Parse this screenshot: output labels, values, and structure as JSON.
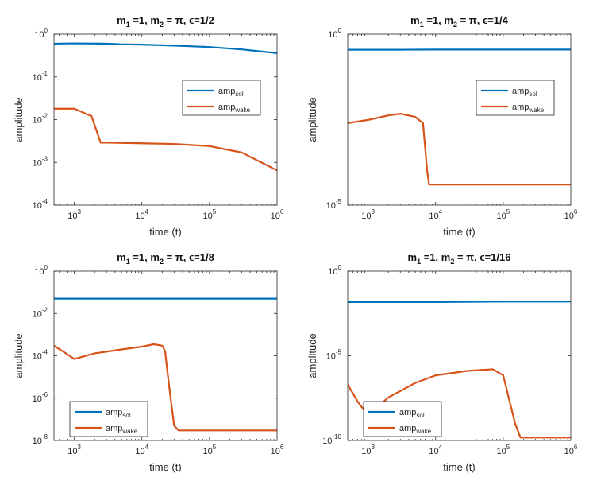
{
  "colors": {
    "sol": "#0072BD",
    "wake": "#D95319"
  },
  "chart_data": [
    {
      "type": "line",
      "title": "m_1 =1, m_2 = π, ϵ=1/2",
      "title_parts": {
        "m1": "m",
        "m1_sub": "1",
        "m1_val": " =1, ",
        "m2": "m",
        "m2_sub": "2",
        "rest": " = π, ϵ=1/2"
      },
      "xlabel": "time (t)",
      "ylabel": "amplitude",
      "xscale": "log",
      "yscale": "log",
      "xlim": [
        500,
        1000000
      ],
      "ylim": [
        0.0001,
        1
      ],
      "xticks": [
        1000,
        10000,
        100000,
        1000000
      ],
      "xtick_labels": [
        {
          "base": "10",
          "exp": "3"
        },
        {
          "base": "10",
          "exp": "4"
        },
        {
          "base": "10",
          "exp": "5"
        },
        {
          "base": "10",
          "exp": "6"
        }
      ],
      "yticks": [
        0.0001,
        0.001,
        0.01,
        0.1,
        1
      ],
      "ytick_labels": [
        {
          "base": "10",
          "exp": "-4"
        },
        {
          "base": "10",
          "exp": "-3"
        },
        {
          "base": "10",
          "exp": "-2"
        },
        {
          "base": "10",
          "exp": "-1"
        },
        {
          "base": "10",
          "exp": "0"
        }
      ],
      "legend": {
        "placement": "right-middle",
        "entries": [
          {
            "base": "amp",
            "sub": "sol"
          },
          {
            "base": "amp",
            "sub": "wake"
          }
        ]
      },
      "series": [
        {
          "name": "amp_sol",
          "x": [
            500,
            1000,
            3000,
            5000,
            10000,
            30000,
            100000,
            300000,
            1000000
          ],
          "y": [
            0.6,
            0.61,
            0.6,
            0.58,
            0.57,
            0.54,
            0.5,
            0.44,
            0.36
          ]
        },
        {
          "name": "amp_wake",
          "x": [
            500,
            1000,
            1800,
            2450,
            3000,
            10000,
            30000,
            100000,
            300000,
            1000000
          ],
          "y": [
            0.018,
            0.018,
            0.012,
            0.0029,
            0.0029,
            0.0028,
            0.0027,
            0.0024,
            0.0017,
            0.00065
          ]
        }
      ]
    },
    {
      "type": "line",
      "title": "m_1 =1, m_2 = π, ϵ=1/4",
      "title_parts": {
        "m1": "m",
        "m1_sub": "1",
        "m1_val": " =1, ",
        "m2": "m",
        "m2_sub": "2",
        "rest": " = π, ϵ=1/4"
      },
      "xlabel": "time (t)",
      "ylabel": "amplitude",
      "xscale": "log",
      "yscale": "log",
      "xlim": [
        500,
        1000000
      ],
      "ylim": [
        1e-05,
        1
      ],
      "xticks": [
        1000,
        10000,
        100000,
        1000000
      ],
      "xtick_labels": [
        {
          "base": "10",
          "exp": "3"
        },
        {
          "base": "10",
          "exp": "4"
        },
        {
          "base": "10",
          "exp": "5"
        },
        {
          "base": "10",
          "exp": "6"
        }
      ],
      "yticks": [
        1e-05,
        1
      ],
      "ytick_labels": [
        {
          "base": "10",
          "exp": "-5"
        },
        {
          "base": "10",
          "exp": "0"
        }
      ],
      "legend": {
        "placement": "right-middle",
        "entries": [
          {
            "base": "amp",
            "sub": "sol"
          },
          {
            "base": "amp",
            "sub": "wake"
          }
        ]
      },
      "series": [
        {
          "name": "amp_sol",
          "x": [
            500,
            3000,
            10000,
            100000,
            1000000
          ],
          "y": [
            0.35,
            0.35,
            0.355,
            0.355,
            0.355
          ]
        },
        {
          "name": "amp_wake",
          "x": [
            500,
            1000,
            2000,
            3000,
            5000,
            6500,
            7500,
            8000,
            10000,
            100000,
            1000000
          ],
          "y": [
            0.0025,
            0.0031,
            0.0042,
            0.0047,
            0.0038,
            0.0025,
            0.0001,
            4e-05,
            4e-05,
            4e-05,
            4e-05
          ]
        }
      ]
    },
    {
      "type": "line",
      "title": "m_1 =1, m_2 = π, ϵ=1/8",
      "title_parts": {
        "m1": "m",
        "m1_sub": "1",
        "m1_val": " =1, ",
        "m2": "m",
        "m2_sub": "2",
        "rest": " = π, ϵ=1/8"
      },
      "xlabel": "time (t)",
      "ylabel": "amplitude",
      "xscale": "log",
      "yscale": "log",
      "xlim": [
        500,
        1000000
      ],
      "ylim": [
        1e-08,
        1
      ],
      "xticks": [
        1000,
        10000,
        100000,
        1000000
      ],
      "xtick_labels": [
        {
          "base": "10",
          "exp": "3"
        },
        {
          "base": "10",
          "exp": "4"
        },
        {
          "base": "10",
          "exp": "5"
        },
        {
          "base": "10",
          "exp": "6"
        }
      ],
      "yticks": [
        1e-08,
        1e-06,
        0.0001,
        0.01,
        1
      ],
      "ytick_labels": [
        {
          "base": "10",
          "exp": "-8"
        },
        {
          "base": "10",
          "exp": "-6"
        },
        {
          "base": "10",
          "exp": "-4"
        },
        {
          "base": "10",
          "exp": "-2"
        },
        {
          "base": "10",
          "exp": "0"
        }
      ],
      "legend": {
        "placement": "bottom-left",
        "entries": [
          {
            "base": "amp",
            "sub": "sol"
          },
          {
            "base": "amp",
            "sub": "wake"
          }
        ]
      },
      "series": [
        {
          "name": "amp_sol",
          "x": [
            500,
            10000,
            1000000
          ],
          "y": [
            0.05,
            0.05,
            0.05
          ]
        },
        {
          "name": "amp_wake",
          "x": [
            500,
            700,
            1000,
            2000,
            5000,
            10000,
            15000,
            20000,
            22000,
            25000,
            30000,
            35000,
            100000,
            1000000
          ],
          "y": [
            0.0003,
            0.00015,
            7e-05,
            0.00013,
            0.0002,
            0.00027,
            0.00035,
            0.0003,
            0.00017,
            5e-06,
            5e-08,
            3e-08,
            3e-08,
            3e-08
          ]
        }
      ]
    },
    {
      "type": "line",
      "title": "m_1 =1, m_2 = π, ϵ=1/16",
      "title_parts": {
        "m1": "m",
        "m1_sub": "1",
        "m1_val": " =1, ",
        "m2": "m",
        "m2_sub": "2",
        "rest": " = π, ϵ=1/16"
      },
      "xlabel": "time (t)",
      "ylabel": "amplitude",
      "xscale": "log",
      "yscale": "log",
      "xlim": [
        500,
        1000000
      ],
      "ylim": [
        1e-10,
        1
      ],
      "xticks": [
        1000,
        10000,
        100000,
        1000000
      ],
      "xtick_labels": [
        {
          "base": "10",
          "exp": "3"
        },
        {
          "base": "10",
          "exp": "4"
        },
        {
          "base": "10",
          "exp": "5"
        },
        {
          "base": "10",
          "exp": "6"
        }
      ],
      "yticks": [
        1e-10,
        1e-05,
        1
      ],
      "ytick_labels": [
        {
          "base": "10",
          "exp": "-10"
        },
        {
          "base": "10",
          "exp": "-5"
        },
        {
          "base": "10",
          "exp": "0"
        }
      ],
      "legend": {
        "placement": "bottom-left",
        "entries": [
          {
            "base": "amp",
            "sub": "sol"
          },
          {
            "base": "amp",
            "sub": "wake"
          }
        ]
      },
      "series": [
        {
          "name": "amp_sol",
          "x": [
            500,
            10000,
            100000,
            1000000
          ],
          "y": [
            0.015,
            0.015,
            0.016,
            0.016
          ]
        },
        {
          "name": "amp_wake",
          "x": [
            500,
            700,
            1000,
            2000,
            5000,
            10000,
            30000,
            70000,
            100000,
            130000,
            150000,
            180000,
            300000,
            1000000
          ],
          "y": [
            2e-07,
            2e-08,
            3e-09,
            3.5e-08,
            2.5e-07,
            7e-07,
            1.3e-06,
            1.6e-06,
            7e-07,
            1e-08,
            1e-09,
            1.5e-10,
            1.5e-10,
            1.5e-10
          ]
        }
      ]
    }
  ]
}
